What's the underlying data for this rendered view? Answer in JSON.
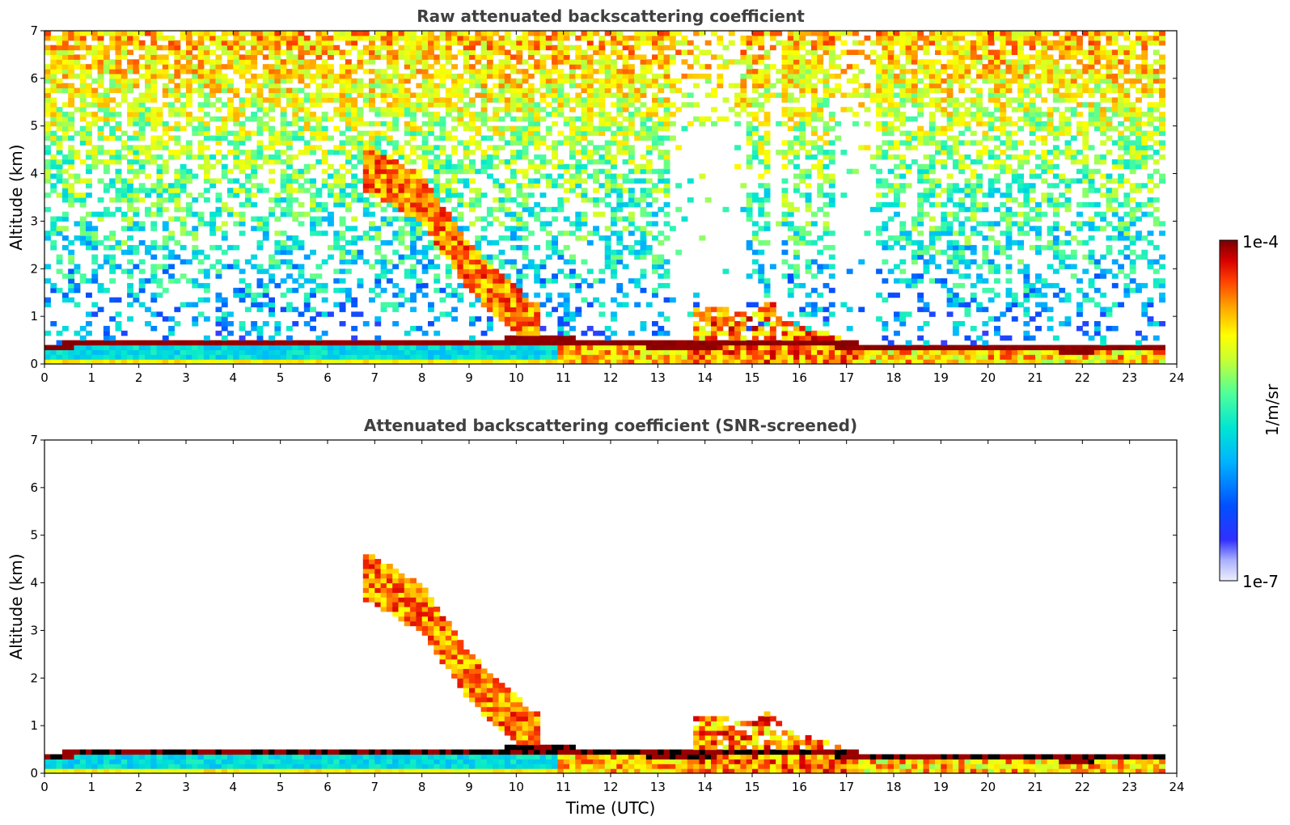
{
  "chart_data": [
    {
      "type": "heatmap",
      "title": "Raw attenuated backscattering coefficient",
      "xlabel": "",
      "ylabel": "Altitude (km)",
      "xlim": [
        0,
        24
      ],
      "ylim": [
        0,
        7
      ],
      "xticks": [
        "0",
        "1",
        "2",
        "3",
        "4",
        "5",
        "6",
        "7",
        "8",
        "9",
        "10",
        "11",
        "12",
        "13",
        "14",
        "15",
        "16",
        "17",
        "18",
        "19",
        "20",
        "21",
        "22",
        "23",
        "24"
      ],
      "yticks": [
        "0",
        "1",
        "2",
        "3",
        "4",
        "5",
        "6",
        "7"
      ],
      "data_end_hour": 23.7,
      "colorbar": {
        "min": "1e-7",
        "max": "1e-4",
        "label": "1/m/sr",
        "scale": "log"
      },
      "features": {
        "boundary_layer_top_km": [
          [
            0,
            0.35
          ],
          [
            1,
            0.45
          ],
          [
            2,
            0.45
          ],
          [
            3,
            0.42
          ],
          [
            4,
            0.45
          ],
          [
            5,
            0.42
          ],
          [
            6,
            0.42
          ],
          [
            7,
            0.45
          ],
          [
            8,
            0.45
          ],
          [
            9,
            0.45
          ],
          [
            10,
            0.5
          ],
          [
            11,
            0.5
          ],
          [
            12,
            0.45
          ],
          [
            13,
            0.4
          ],
          [
            14,
            0.4
          ],
          [
            15,
            0.45
          ],
          [
            16,
            0.45
          ],
          [
            17,
            0.4
          ],
          [
            18,
            0.35
          ],
          [
            19,
            0.35
          ],
          [
            20,
            0.32
          ],
          [
            21,
            0.32
          ],
          [
            22,
            0.3
          ],
          [
            23,
            0.35
          ],
          [
            23.7,
            0.35
          ]
        ],
        "descending_layer_km": [
          [
            6.8,
            4.2
          ],
          [
            7.5,
            3.8
          ],
          [
            8,
            3.5
          ],
          [
            8.5,
            2.8
          ],
          [
            9,
            2.1
          ],
          [
            9.5,
            1.6
          ],
          [
            10,
            1.2
          ],
          [
            10.3,
            0.8
          ]
        ],
        "low_clouds_km": [
          [
            13.9,
            1.2
          ],
          [
            15,
            1.1
          ],
          [
            15.4,
            1.3
          ],
          [
            15.7,
            0.9
          ],
          [
            16.5,
            0.7
          ],
          [
            17,
            0.5
          ]
        ]
      }
    },
    {
      "type": "heatmap",
      "title": "Attenuated backscattering coefficient (SNR-screened)",
      "xlabel": "Time (UTC)",
      "ylabel": "Altitude (km)",
      "xlim": [
        0,
        24
      ],
      "ylim": [
        0,
        7
      ],
      "xticks": [
        "0",
        "1",
        "2",
        "3",
        "4",
        "5",
        "6",
        "7",
        "8",
        "9",
        "10",
        "11",
        "12",
        "13",
        "14",
        "15",
        "16",
        "17",
        "18",
        "19",
        "20",
        "21",
        "22",
        "23",
        "24"
      ],
      "yticks": [
        "0",
        "1",
        "2",
        "3",
        "4",
        "5",
        "6",
        "7"
      ],
      "data_end_hour": 23.7,
      "colorbar": {
        "min": "1e-7",
        "max": "1e-4",
        "label": "1/m/sr",
        "scale": "log"
      }
    }
  ],
  "colorbar": {
    "max_label": "1e-4",
    "min_label": "1e-7",
    "unit_label": "1/m/sr",
    "colors": [
      "#e6e6f5",
      "#b3b3ff",
      "#7f7fff",
      "#0000ff",
      "#0050ff",
      "#00a0ff",
      "#00e0e0",
      "#40ffb0",
      "#a0ff50",
      "#ffff00",
      "#ffb000",
      "#ff5000",
      "#e00000",
      "#800000"
    ]
  }
}
